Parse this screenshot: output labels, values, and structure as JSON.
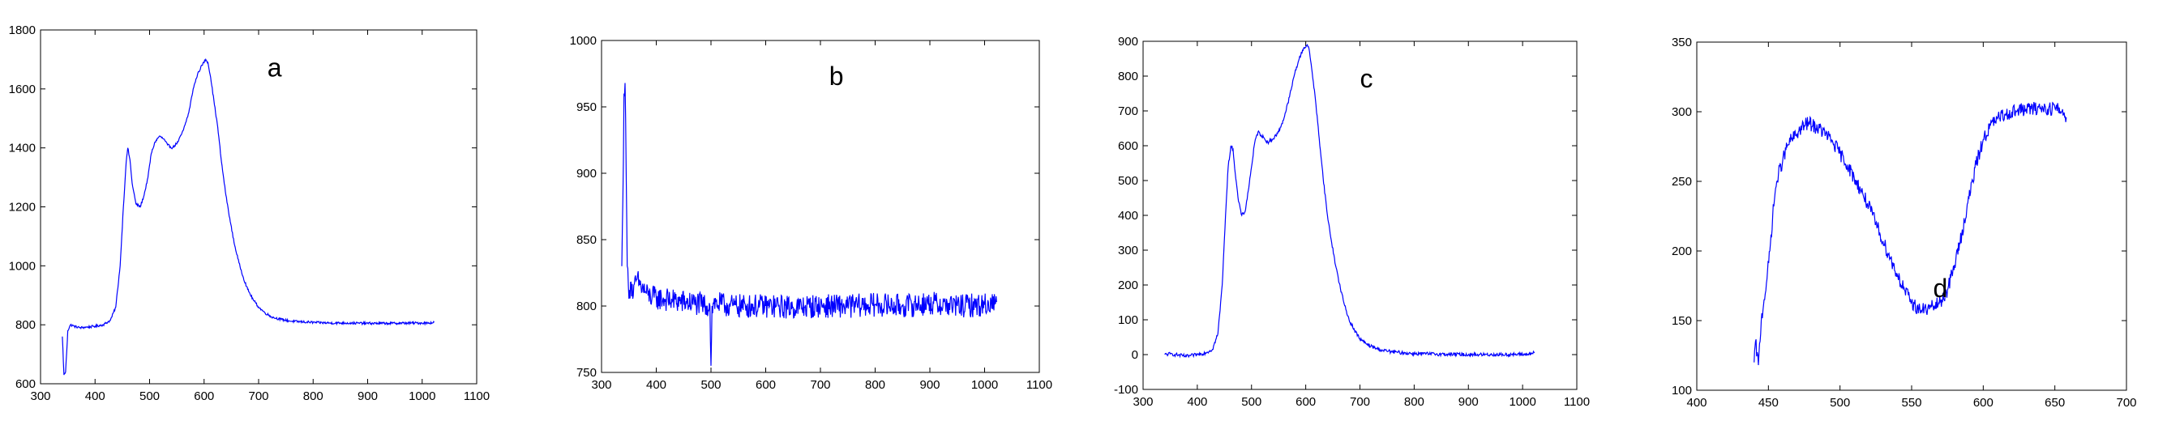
{
  "chart_data": [
    {
      "type": "line",
      "annotation": "a",
      "xlim": [
        300,
        1100
      ],
      "ylim": [
        600,
        1800
      ],
      "xticks": [
        300,
        400,
        500,
        600,
        700,
        800,
        900,
        1000,
        1100
      ],
      "yticks": [
        600,
        800,
        1000,
        1200,
        1400,
        1600,
        1800
      ],
      "line_color": "#0000ff",
      "series": [
        {
          "noise": 4,
          "x": [
            340,
            343,
            346,
            350,
            355,
            362,
            372,
            385,
            400,
            415,
            428,
            438,
            446,
            452,
            457,
            460,
            464,
            468,
            475,
            483,
            490,
            497,
            503,
            510,
            518,
            526,
            533,
            542,
            552,
            562,
            572,
            580,
            588,
            596,
            603,
            607,
            612,
            618,
            625,
            632,
            640,
            648,
            656,
            664,
            672,
            680,
            690,
            700,
            712,
            726,
            742,
            760,
            780,
            800,
            830,
            860,
            900,
            940,
            980,
            1010,
            1022
          ],
          "y": [
            760,
            630,
            640,
            780,
            800,
            795,
            790,
            792,
            795,
            800,
            815,
            860,
            1000,
            1200,
            1350,
            1400,
            1360,
            1280,
            1210,
            1200,
            1240,
            1300,
            1380,
            1420,
            1440,
            1430,
            1410,
            1400,
            1420,
            1460,
            1520,
            1600,
            1650,
            1680,
            1700,
            1690,
            1640,
            1560,
            1470,
            1350,
            1240,
            1150,
            1070,
            1010,
            960,
            920,
            885,
            860,
            840,
            825,
            818,
            812,
            810,
            808,
            806,
            806,
            805,
            805,
            806,
            806,
            808
          ]
        }
      ]
    },
    {
      "type": "line",
      "annotation": "b",
      "xlim": [
        300,
        1100
      ],
      "ylim": [
        750,
        1000
      ],
      "xticks": [
        300,
        400,
        500,
        600,
        700,
        800,
        900,
        1000,
        1100
      ],
      "yticks": [
        750,
        800,
        850,
        900,
        950,
        1000
      ],
      "line_color": "#0000ff",
      "series": [
        {
          "noise": 9,
          "x": [
            337,
            339,
            341,
            343,
            345,
            347,
            349,
            351,
            354,
            358,
            364,
            372,
            385,
            400,
            430,
            470,
            498,
            500,
            502,
            505,
            540,
            600,
            650,
            700,
            750,
            800,
            850,
            900,
            950,
            1000,
            1022
          ],
          "y": [
            830,
            880,
            960,
            968,
            900,
            830,
            815,
            812,
            818,
            808,
            820,
            815,
            808,
            806,
            804,
            802,
            800,
            755,
            800,
            802,
            800,
            800,
            799,
            800,
            800,
            801,
            800,
            802,
            800,
            801,
            803
          ]
        }
      ]
    },
    {
      "type": "line",
      "annotation": "c",
      "xlim": [
        300,
        1100
      ],
      "ylim": [
        -100,
        900
      ],
      "xticks": [
        300,
        400,
        500,
        600,
        700,
        800,
        900,
        1000,
        1100
      ],
      "yticks": [
        -100,
        0,
        100,
        200,
        300,
        400,
        500,
        600,
        700,
        800,
        900
      ],
      "line_color": "#0000ff",
      "series": [
        {
          "noise": 5,
          "x": [
            340,
            350,
            360,
            380,
            400,
            415,
            428,
            438,
            446,
            452,
            457,
            462,
            466,
            470,
            476,
            482,
            488,
            494,
            500,
            506,
            512,
            518,
            524,
            530,
            540,
            550,
            560,
            570,
            580,
            588,
            596,
            603,
            607,
            612,
            618,
            625,
            632,
            640,
            648,
            656,
            664,
            672,
            680,
            690,
            700,
            712,
            726,
            742,
            760,
            780,
            800,
            830,
            860,
            900,
            940,
            980,
            1010,
            1022
          ],
          "y": [
            0,
            2,
            0,
            -5,
            0,
            5,
            15,
            60,
            200,
            400,
            540,
            600,
            590,
            520,
            440,
            400,
            410,
            470,
            540,
            610,
            640,
            630,
            620,
            610,
            620,
            640,
            680,
            740,
            810,
            850,
            880,
            890,
            870,
            810,
            730,
            620,
            510,
            400,
            320,
            250,
            190,
            140,
            100,
            70,
            45,
            30,
            20,
            12,
            8,
            5,
            3,
            2,
            1,
            0,
            0,
            0,
            1,
            5
          ]
        }
      ]
    },
    {
      "type": "line",
      "annotation": "d",
      "xlim": [
        400,
        700
      ],
      "ylim": [
        100,
        350
      ],
      "xticks": [
        400,
        450,
        500,
        550,
        600,
        650,
        700
      ],
      "yticks": [
        100,
        150,
        200,
        250,
        300,
        350
      ],
      "line_color": "#0000ff",
      "series": [
        {
          "noise": 5,
          "x": [
            440,
            441,
            443,
            445,
            447,
            449,
            451,
            453,
            455,
            457,
            460,
            463,
            466,
            469,
            472,
            475,
            478,
            481,
            485,
            490,
            495,
            500,
            505,
            510,
            515,
            520,
            525,
            530,
            535,
            540,
            545,
            550,
            555,
            560,
            565,
            570,
            575,
            580,
            585,
            590,
            595,
            600,
            605,
            610,
            615,
            620,
            625,
            630,
            635,
            640,
            645,
            650,
            655,
            658
          ],
          "y": [
            120,
            135,
            118,
            150,
            165,
            180,
            200,
            225,
            245,
            255,
            265,
            275,
            280,
            283,
            287,
            290,
            292,
            290,
            288,
            284,
            278,
            270,
            262,
            252,
            243,
            232,
            220,
            207,
            195,
            183,
            172,
            163,
            158,
            158,
            160,
            163,
            172,
            190,
            212,
            238,
            262,
            280,
            290,
            295,
            298,
            300,
            301,
            302,
            302,
            303,
            302,
            303,
            300,
            296
          ]
        }
      ]
    }
  ]
}
